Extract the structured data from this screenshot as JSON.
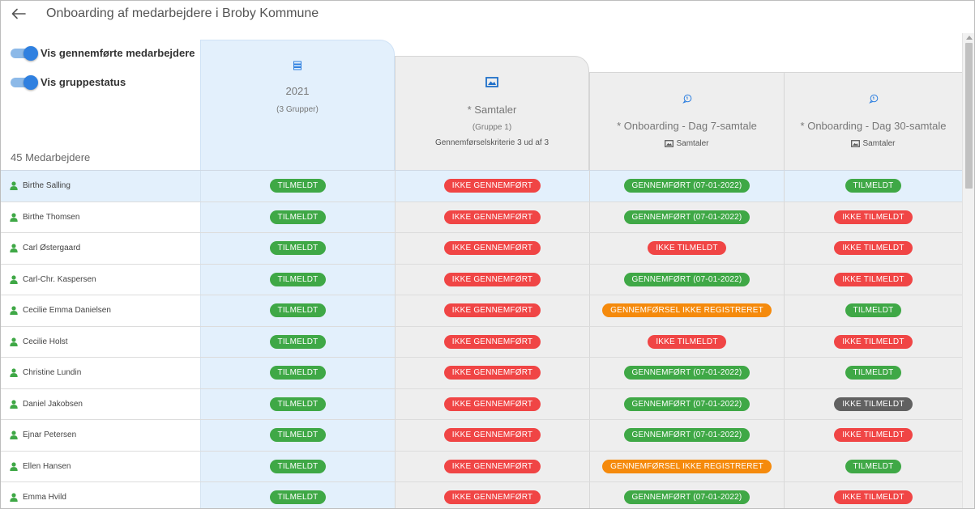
{
  "header": {
    "title": "Onboarding af medarbejdere i Broby Kommune",
    "back_icon": "arrow-left-icon"
  },
  "toggles": [
    {
      "label": "Vis gennemførte  medarbejdere",
      "on": true
    },
    {
      "label": "Vis gruppestatus",
      "on": true
    }
  ],
  "employee_count": "45 Medarbejdere",
  "columns": [
    {
      "icon": "stack-icon",
      "title": "2021",
      "subtitle": "(3 Grupper)"
    },
    {
      "icon": "image-frame-icon",
      "title": "* Samtaler",
      "subtitle": "(Gruppe 1)",
      "criteria": "Gennemførselskriterie 3 ud af 3"
    },
    {
      "icon": "chat-bubble-icon",
      "title": "* Onboarding - Dag 7-samtale",
      "group": "Samtaler"
    },
    {
      "icon": "chat-bubble-icon",
      "title": "* Onboarding - Dag 30-samtale",
      "group": "Samtaler"
    }
  ],
  "colors": {
    "green": "#3fa846",
    "red": "#f04545",
    "orange": "#f58a0c",
    "grey": "#616161",
    "accent": "#2f80e0",
    "selected_row": "#e3f0fc"
  },
  "rows": [
    {
      "name": "Birthe Salling",
      "s1": "TILMELDT",
      "s2": "IKKE GENNEMFØRT",
      "s3": "GENNEMFØRT (07-01-2022)",
      "s4": "TILMELDT"
    },
    {
      "name": "Birthe Thomsen",
      "s1": "TILMELDT",
      "s2": "IKKE GENNEMFØRT",
      "s3": "GENNEMFØRT (07-01-2022)",
      "s4": "IKKE TILMELDT"
    },
    {
      "name": "Carl Østergaard",
      "s1": "TILMELDT",
      "s2": "IKKE GENNEMFØRT",
      "s3": "IKKE TILMELDT",
      "s4": "IKKE TILMELDT"
    },
    {
      "name": "Carl-Chr. Kaspersen",
      "s1": "TILMELDT",
      "s2": "IKKE GENNEMFØRT",
      "s3": "GENNEMFØRT (07-01-2022)",
      "s4": "IKKE TILMELDT"
    },
    {
      "name": "Cecilie Emma Danielsen",
      "s1": "TILMELDT",
      "s2": "IKKE GENNEMFØRT",
      "s3": "GENNEMFØRSEL IKKE REGISTRERET",
      "s4": "TILMELDT"
    },
    {
      "name": "Cecilie Holst",
      "s1": "TILMELDT",
      "s2": "IKKE GENNEMFØRT",
      "s3": "IKKE TILMELDT",
      "s4": "IKKE TILMELDT"
    },
    {
      "name": "Christine Lundin",
      "s1": "TILMELDT",
      "s2": "IKKE GENNEMFØRT",
      "s3": "GENNEMFØRT (07-01-2022)",
      "s4": "TILMELDT"
    },
    {
      "name": "Daniel Jakobsen",
      "s1": "TILMELDT",
      "s2": "IKKE GENNEMFØRT",
      "s3": "GENNEMFØRT (07-01-2022)",
      "s4": "IKKE TILMELDT"
    },
    {
      "name": "Ejnar Petersen",
      "s1": "TILMELDT",
      "s2": "IKKE GENNEMFØRT",
      "s3": "GENNEMFØRT (07-01-2022)",
      "s4": "IKKE TILMELDT"
    },
    {
      "name": "Ellen Hansen",
      "s1": "TILMELDT",
      "s2": "IKKE GENNEMFØRT",
      "s3": "GENNEMFØRSEL IKKE REGISTRERET",
      "s4": "TILMELDT"
    },
    {
      "name": "Emma Hvild",
      "s1": "TILMELDT",
      "s2": "IKKE GENNEMFØRT",
      "s3": "GENNEMFØRT (07-01-2022)",
      "s4": "IKKE TILMELDT"
    }
  ]
}
